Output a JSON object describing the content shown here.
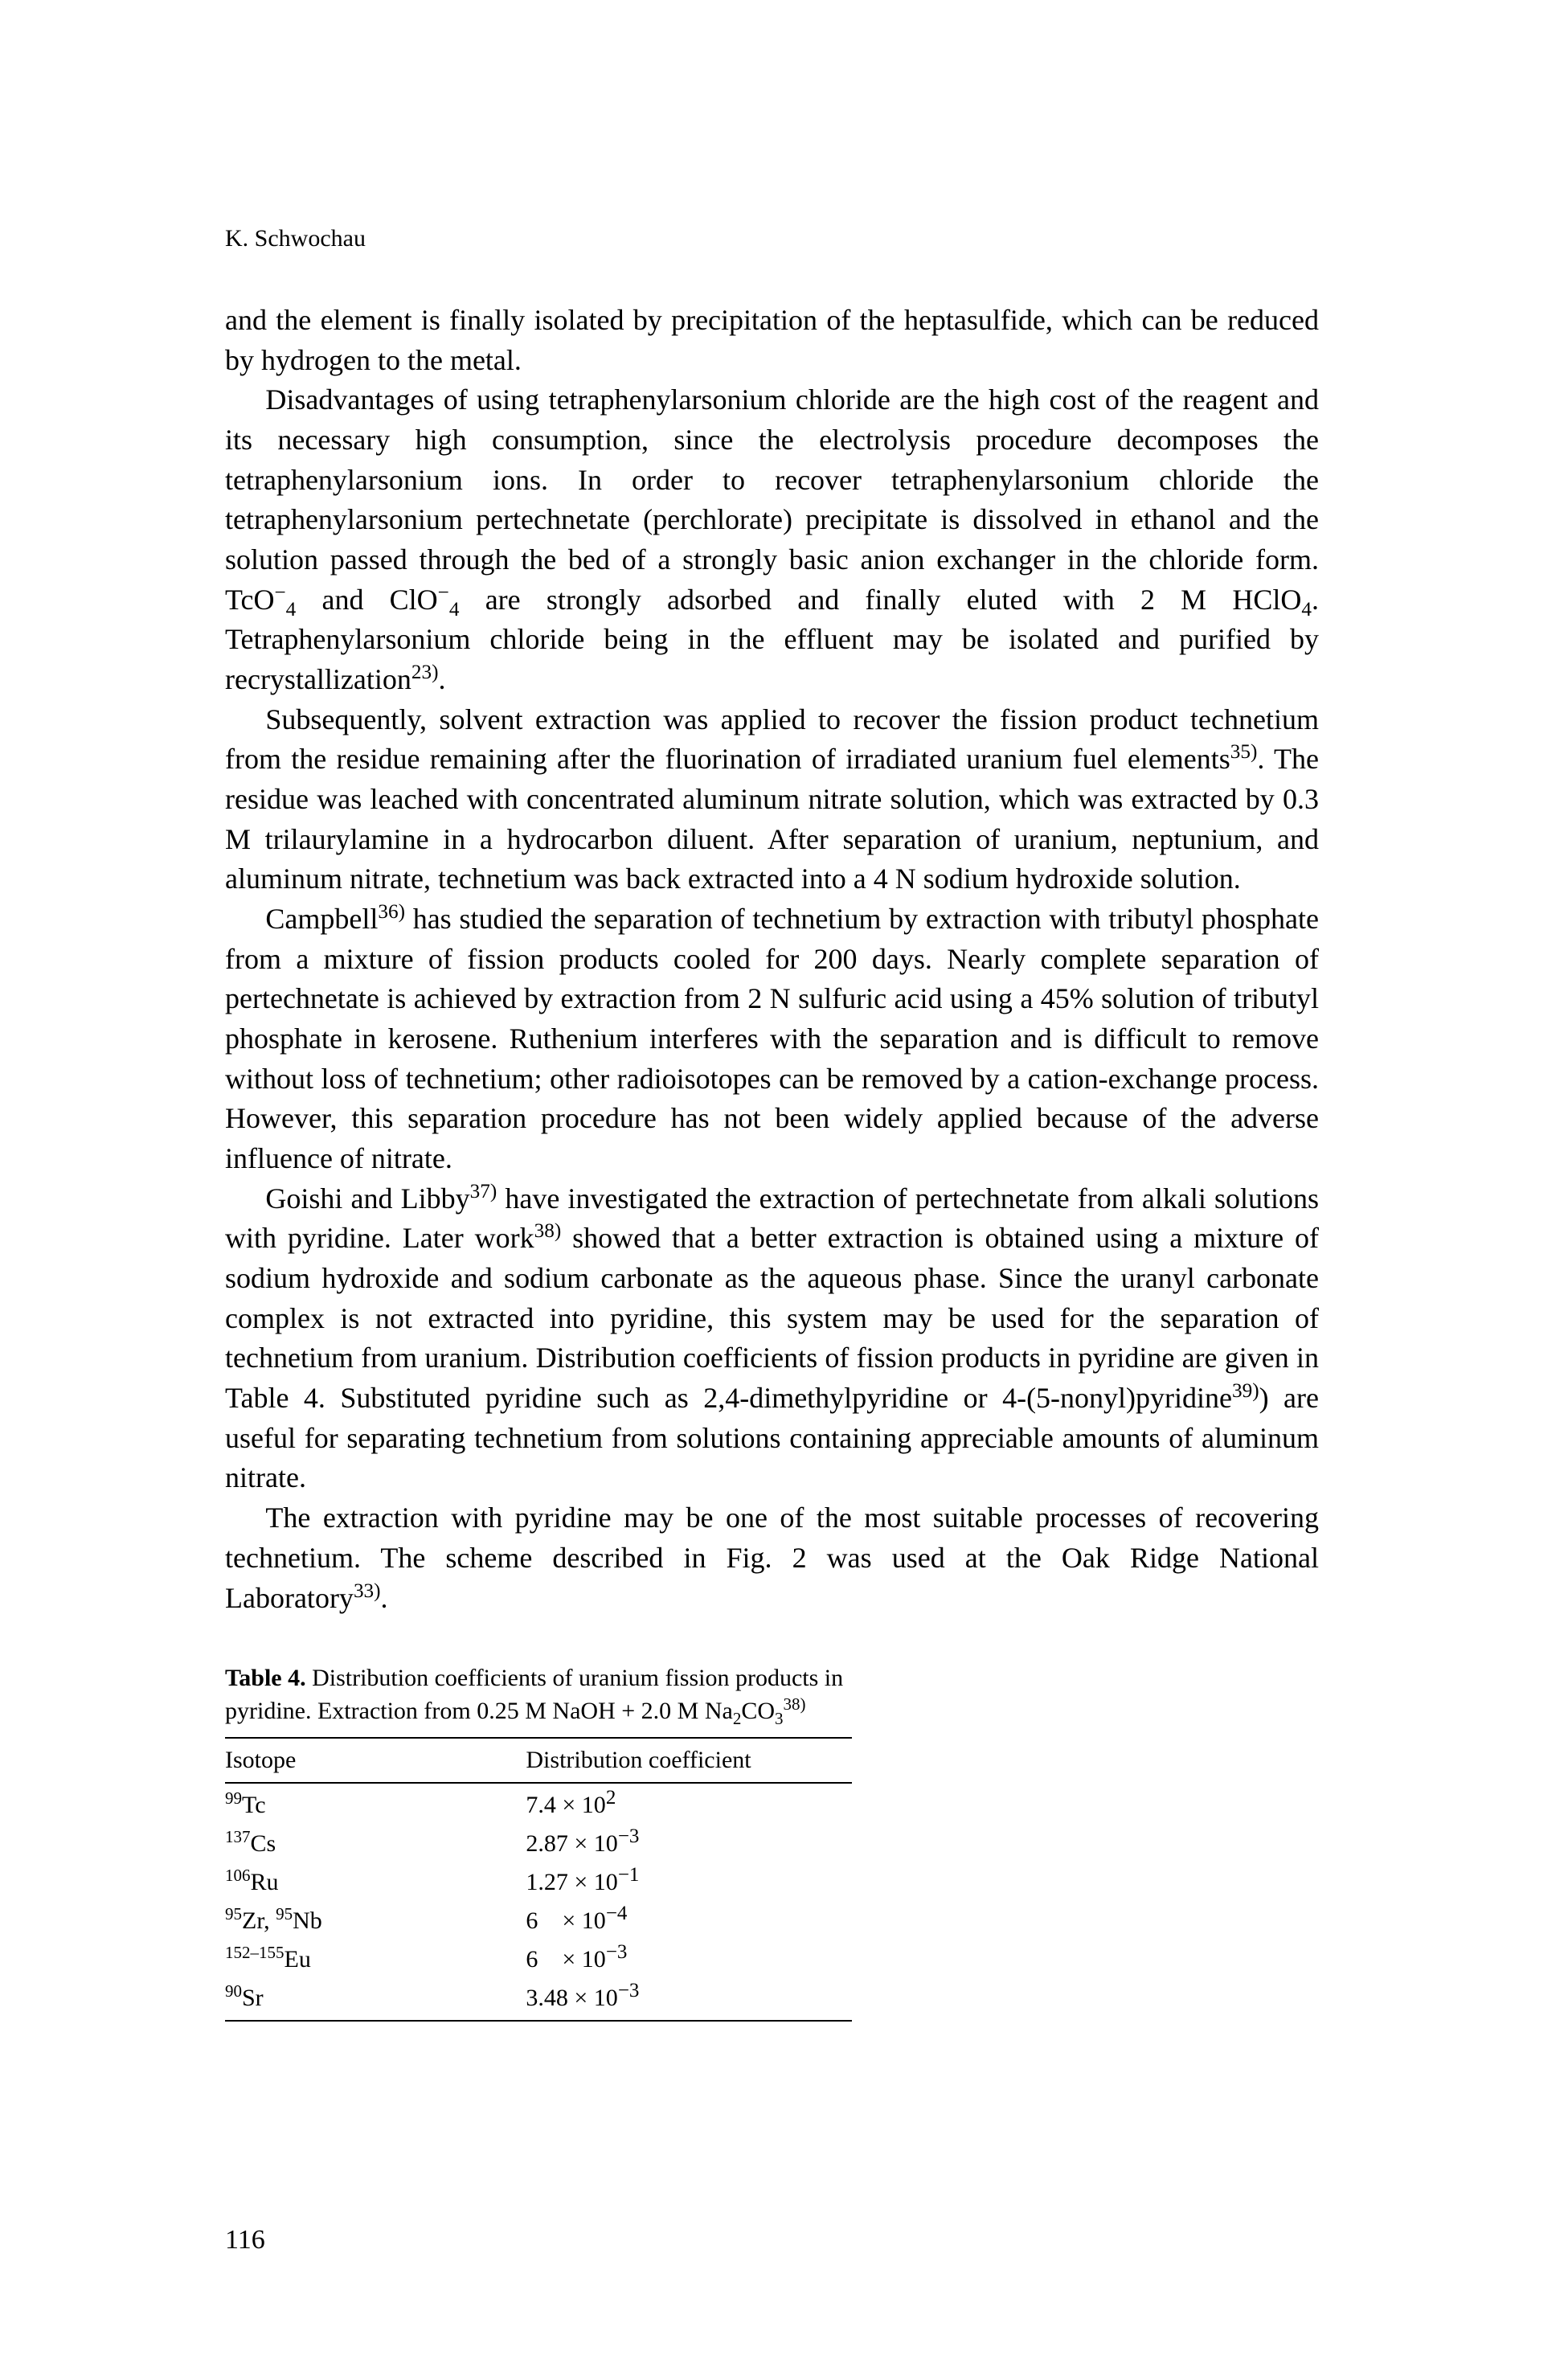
{
  "author": "K. Schwochau",
  "paragraphs": {
    "p1": "and the element is finally isolated by precipitation of the heptasulfide, which can be reduced by hydrogen to the metal.",
    "p2a": "Disadvantages of using tetraphenylarsonium chloride are the high cost of the reagent and its necessary high consumption, since the electrolysis procedure decomposes the tetraphenylarsonium ions. In order to recover tetraphenylarsonium chloride the tetraphenylarsonium pertechnetate (perchlorate) precipitate is dissolved in ethanol and the solution passed through the bed of a strongly basic anion exchanger in the chloride form. TcO",
    "p2b": " and ClO",
    "p2c": " are strongly adsorbed and finally eluted with 2 M HClO",
    "p2d": ". Tetraphenylarsonium chloride being in the effluent may be isolated and purified by recrystallization",
    "p2e": ".",
    "p3a": "Subsequently, solvent extraction was applied to recover the fission product technetium from the residue remaining after the fluorination of irradiated uranium fuel elements",
    "p3b": ". The residue was leached with concentrated aluminum nitrate solution, which was extracted by 0.3 M trilaurylamine in a hydrocarbon diluent. After separation of uranium, neptunium, and aluminum nitrate, technetium was back extracted into a 4 N sodium hydroxide solution.",
    "p4a": "Campbell",
    "p4b": " has studied the separation of technetium by extraction with tributyl phosphate from a mixture of fission products cooled for 200 days. Nearly complete separation of pertechnetate is achieved by extraction from 2 N sulfuric acid using a 45% solution of tributyl phosphate in kerosene. Ruthenium interferes with the separation and is difficult to remove without loss of technetium; other radioisotopes can be removed by a cation-exchange process. However, this separation procedure has not been widely applied because of the adverse influence of nitrate.",
    "p5a": "Goishi and Libby",
    "p5b": " have investigated the extraction of pertechnetate from alkali solutions with pyridine. Later work",
    "p5c": " showed that a better extraction is obtained using a mixture of sodium hydroxide and sodium carbonate as the aqueous phase. Since the uranyl carbonate complex is not extracted into pyridine, this system may be used for the separation of technetium from uranium. Distribution coefficients of fission products in pyridine are given in Table 4. Substituted pyridine such as 2,4-dimethylpyridine or 4-(5-nonyl)pyridine",
    "p5d": ") are useful for separating technetium from solutions containing appreciable amounts of aluminum nitrate.",
    "p6a": "The extraction with pyridine may be one of the most suitable processes of recovering technetium. The scheme described in Fig. 2 was used at the Oak Ridge National Laboratory",
    "p6b": "."
  },
  "refs": {
    "r23": "23)",
    "r33": "33)",
    "r35": "35)",
    "r36": "36)",
    "r37": "37)",
    "r38": "38)",
    "r39": "39)"
  },
  "ions": {
    "neg4": "4",
    "minus": "−",
    "sub4": "4"
  },
  "table": {
    "caption_bold": "Table 4.",
    "caption_rest_a": " Distribution coefficients of uranium fission products in pyridine. Extraction from 0.25 M NaOH + 2.0 M Na",
    "caption_rest_b": "CO",
    "caption_sub2": "2",
    "caption_sub3": "3",
    "caption_ref": "38)",
    "headers": {
      "isotope": "Isotope",
      "coef": "Distribution coefficient"
    },
    "rows": [
      {
        "sup": "99",
        "sym": "Tc",
        "coef_a": "7.4",
        "coef_op": " × 10",
        "coef_exp": "2"
      },
      {
        "sup": "137",
        "sym": "Cs",
        "coef_a": "2.87",
        "coef_op": " × 10",
        "coef_exp": "−3"
      },
      {
        "sup": "106",
        "sym": "Ru",
        "coef_a": "1.27",
        "coef_op": " × 10",
        "coef_exp": "−1"
      },
      {
        "sup": "95",
        "sym": "Zr, ",
        "sup2": "95",
        "sym2": "Nb",
        "coef_a": "6",
        "coef_op": "    × 10",
        "coef_exp": "−4"
      },
      {
        "sup": "152–155",
        "sym": "Eu",
        "coef_a": "6",
        "coef_op": "    × 10",
        "coef_exp": "−3"
      },
      {
        "sup": "90",
        "sym": "Sr",
        "coef_a": "3.48",
        "coef_op": " × 10",
        "coef_exp": "−3"
      }
    ]
  },
  "page_number": "116"
}
